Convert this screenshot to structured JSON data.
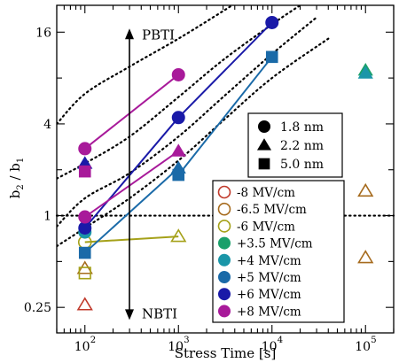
{
  "chart_data": {
    "type": "scatter",
    "xlabel": "Stress Time [s]",
    "ylabel_main": "b",
    "ylabel_sub1": "2",
    "ylabel_sep": " / b",
    "ylabel_sub2": "1",
    "x_scale": "log",
    "y_scale": "log2",
    "xlim": [
      50,
      200000
    ],
    "ylim": [
      0.17,
      24
    ],
    "x_ticks": [
      {
        "value": 100,
        "base": "10",
        "exp": "2"
      },
      {
        "value": 1000,
        "base": "10",
        "exp": "3"
      },
      {
        "value": 10000,
        "base": "10",
        "exp": "4"
      },
      {
        "value": 100000,
        "base": "10",
        "exp": "5"
      }
    ],
    "y_ticks": [
      {
        "value": 0.25,
        "label": "0.25"
      },
      {
        "value": 1,
        "label": "1"
      },
      {
        "value": 4,
        "label": "4"
      },
      {
        "value": 16,
        "label": "16"
      }
    ],
    "annotations": {
      "pbti": "PBTI",
      "nbti": "NBTI",
      "arrow_x": 300,
      "arrow_top": 16,
      "arrow_bottom": 0.23
    },
    "reference_line": {
      "y": 1
    },
    "guide_curves": [
      {
        "points": [
          [
            50,
            4.0
          ],
          [
            100,
            6.3
          ],
          [
            300,
            9.5
          ],
          [
            1000,
            14.5
          ],
          [
            3000,
            22
          ],
          [
            5000,
            27
          ]
        ]
      },
      {
        "points": [
          [
            50,
            1.75
          ],
          [
            100,
            2.2
          ],
          [
            300,
            3.3
          ],
          [
            1000,
            6.0
          ],
          [
            3000,
            10.5
          ],
          [
            10000,
            18
          ],
          [
            20000,
            24
          ]
        ]
      },
      {
        "points": [
          [
            50,
            0.85
          ],
          [
            100,
            1.3
          ],
          [
            300,
            1.9
          ],
          [
            1000,
            3.3
          ],
          [
            3000,
            6.0
          ],
          [
            10000,
            11.5
          ],
          [
            30000,
            20
          ]
        ]
      },
      {
        "points": [
          [
            50,
            0.63
          ],
          [
            100,
            0.83
          ],
          [
            300,
            1.3
          ],
          [
            1000,
            2.3
          ],
          [
            3000,
            4.2
          ],
          [
            10000,
            8.0
          ],
          [
            40000,
            14.5
          ]
        ]
      }
    ],
    "series": [
      {
        "field": "-8 MV/cm",
        "color": "#c0392b",
        "filled": false,
        "points": [
          [
            100,
            0.26,
            "triangle"
          ]
        ]
      },
      {
        "field": "-6.5 MV/cm",
        "color": "#a66b1e",
        "filled": false,
        "points": [
          [
            100,
            0.45,
            "triangle"
          ],
          [
            100000,
            0.53,
            "triangle"
          ]
        ]
      },
      {
        "field": "-6 MV/cm",
        "color": "#a5a119",
        "filled": false,
        "points": [
          [
            100,
            0.67,
            "circle"
          ],
          [
            100,
            0.42,
            "square"
          ],
          [
            1000,
            0.73,
            "triangle"
          ]
        ],
        "lines": [
          [
            0,
            2
          ]
        ]
      },
      {
        "field": "+3.5 MV/cm",
        "color": "#1aa06a",
        "filled": true,
        "points": [
          [
            100000,
            9.0,
            "triangle"
          ]
        ]
      },
      {
        "field": "+4 MV/cm",
        "color": "#1a96a8",
        "filled": true,
        "points": [
          [
            100,
            0.78,
            "circle"
          ],
          [
            100000,
            8.6,
            "triangle"
          ]
        ]
      },
      {
        "field": "+5 MV/cm",
        "color": "#1a6aa8",
        "filled": true,
        "points": [
          [
            100,
            0.57,
            "square"
          ],
          [
            1000,
            2.05,
            "triangle"
          ],
          [
            1000,
            1.85,
            "square"
          ],
          [
            10000,
            11.0,
            "square"
          ]
        ],
        "lines": [
          [
            0,
            1
          ],
          [
            2,
            3
          ]
        ]
      },
      {
        "field": "+6 MV/cm",
        "color": "#1a1aa8",
        "filled": true,
        "points": [
          [
            100,
            2.2,
            "triangle"
          ],
          [
            100,
            0.83,
            "circle"
          ],
          [
            1000,
            4.4,
            "circle"
          ],
          [
            10000,
            18.5,
            "circle"
          ]
        ],
        "lines": [
          [
            1,
            2
          ],
          [
            2,
            3
          ]
        ]
      },
      {
        "field": "+8 MV/cm",
        "color": "#a81a9a",
        "filled": true,
        "points": [
          [
            100,
            2.75,
            "circle"
          ],
          [
            100,
            1.95,
            "square"
          ],
          [
            100,
            0.98,
            "circle"
          ],
          [
            1000,
            8.4,
            "circle"
          ],
          [
            1000,
            2.65,
            "triangle"
          ]
        ],
        "lines": [
          [
            0,
            3
          ],
          [
            2,
            4
          ]
        ]
      }
    ],
    "extra_points": [
      {
        "x": 100000,
        "y": 1.45,
        "shape": "triangle",
        "color": "#a66b1e",
        "filled": false
      }
    ],
    "legend_thickness": {
      "position": "upper-right",
      "entries": [
        {
          "label": "1.8 nm",
          "shape": "circle"
        },
        {
          "label": "2.2 nm",
          "shape": "triangle"
        },
        {
          "label": "5.0 nm",
          "shape": "square"
        }
      ]
    },
    "legend_field": {
      "position": "lower-right",
      "entries": [
        {
          "label": "-8 MV/cm",
          "color": "#c0392b",
          "filled": false
        },
        {
          "label": "-6.5 MV/cm",
          "color": "#a66b1e",
          "filled": false
        },
        {
          "label": "-6 MV/cm",
          "color": "#a5a119",
          "filled": false
        },
        {
          "label": "+3.5 MV/cm",
          "color": "#1aa06a",
          "filled": true
        },
        {
          "label": "+4 MV/cm",
          "color": "#1a96a8",
          "filled": true
        },
        {
          "label": "+5 MV/cm",
          "color": "#1a6aa8",
          "filled": true
        },
        {
          "label": "+6 MV/cm",
          "color": "#1a1aa8",
          "filled": true
        },
        {
          "label": "+8 MV/cm",
          "color": "#a81a9a",
          "filled": true
        }
      ]
    }
  }
}
